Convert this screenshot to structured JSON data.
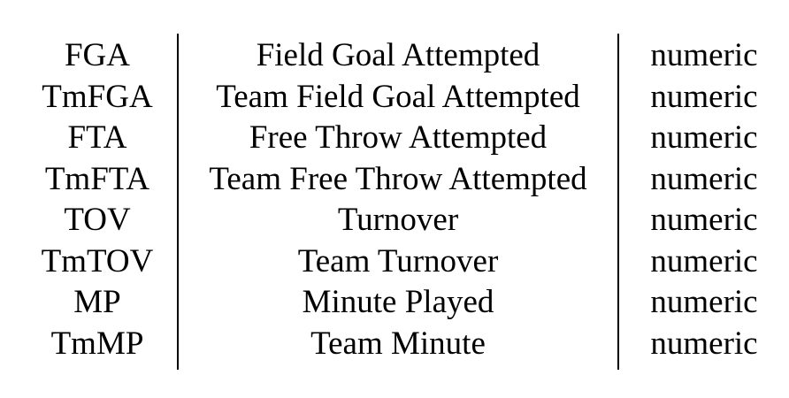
{
  "table": {
    "rows": [
      {
        "abbr": "FGA",
        "description": "Field Goal Attempted",
        "type": "numeric"
      },
      {
        "abbr": "TmFGA",
        "description": "Team Field Goal Attempted",
        "type": "numeric"
      },
      {
        "abbr": "FTA",
        "description": "Free Throw Attempted",
        "type": "numeric"
      },
      {
        "abbr": "TmFTA",
        "description": "Team Free Throw Attempted",
        "type": "numeric"
      },
      {
        "abbr": "TOV",
        "description": "Turnover",
        "type": "numeric"
      },
      {
        "abbr": "TmTOV",
        "description": "Team Turnover",
        "type": "numeric"
      },
      {
        "abbr": "MP",
        "description": "Minute Played",
        "type": "numeric"
      },
      {
        "abbr": "TmMP",
        "description": "Team Minute",
        "type": "numeric"
      }
    ]
  }
}
